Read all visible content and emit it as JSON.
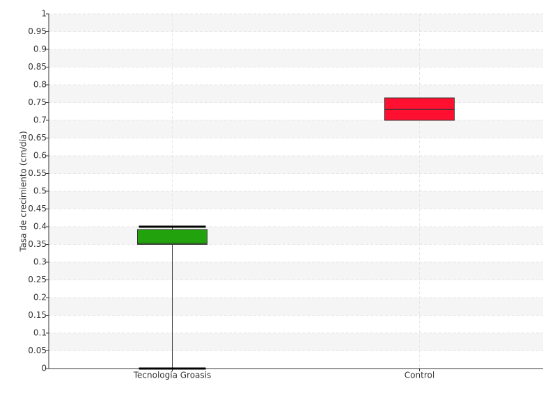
{
  "chart_data": {
    "type": "box",
    "y_label": "Tasa de crecimiento (cm/día)",
    "categories": [
      "Tecnología Groasis",
      "Control"
    ],
    "series": [
      {
        "name": "Tecnología Groasis",
        "color": "#22a20c",
        "min": 0,
        "q1": 0.35,
        "median": 0.353,
        "q3": 0.392,
        "max": 0.4
      },
      {
        "name": "Control",
        "color": "#ff1030",
        "min": 0.7,
        "q1": 0.7,
        "median": 0.731,
        "q3": 0.763,
        "max": 0.763
      }
    ],
    "ylim": [
      0,
      1
    ],
    "yticks": [
      0,
      0.05,
      0.1,
      0.15,
      0.2,
      0.25,
      0.3,
      0.35,
      0.4,
      0.45,
      0.5,
      0.55,
      0.6,
      0.65,
      0.7,
      0.75,
      0.8,
      0.85,
      0.9,
      0.95,
      1
    ],
    "grid": true
  }
}
